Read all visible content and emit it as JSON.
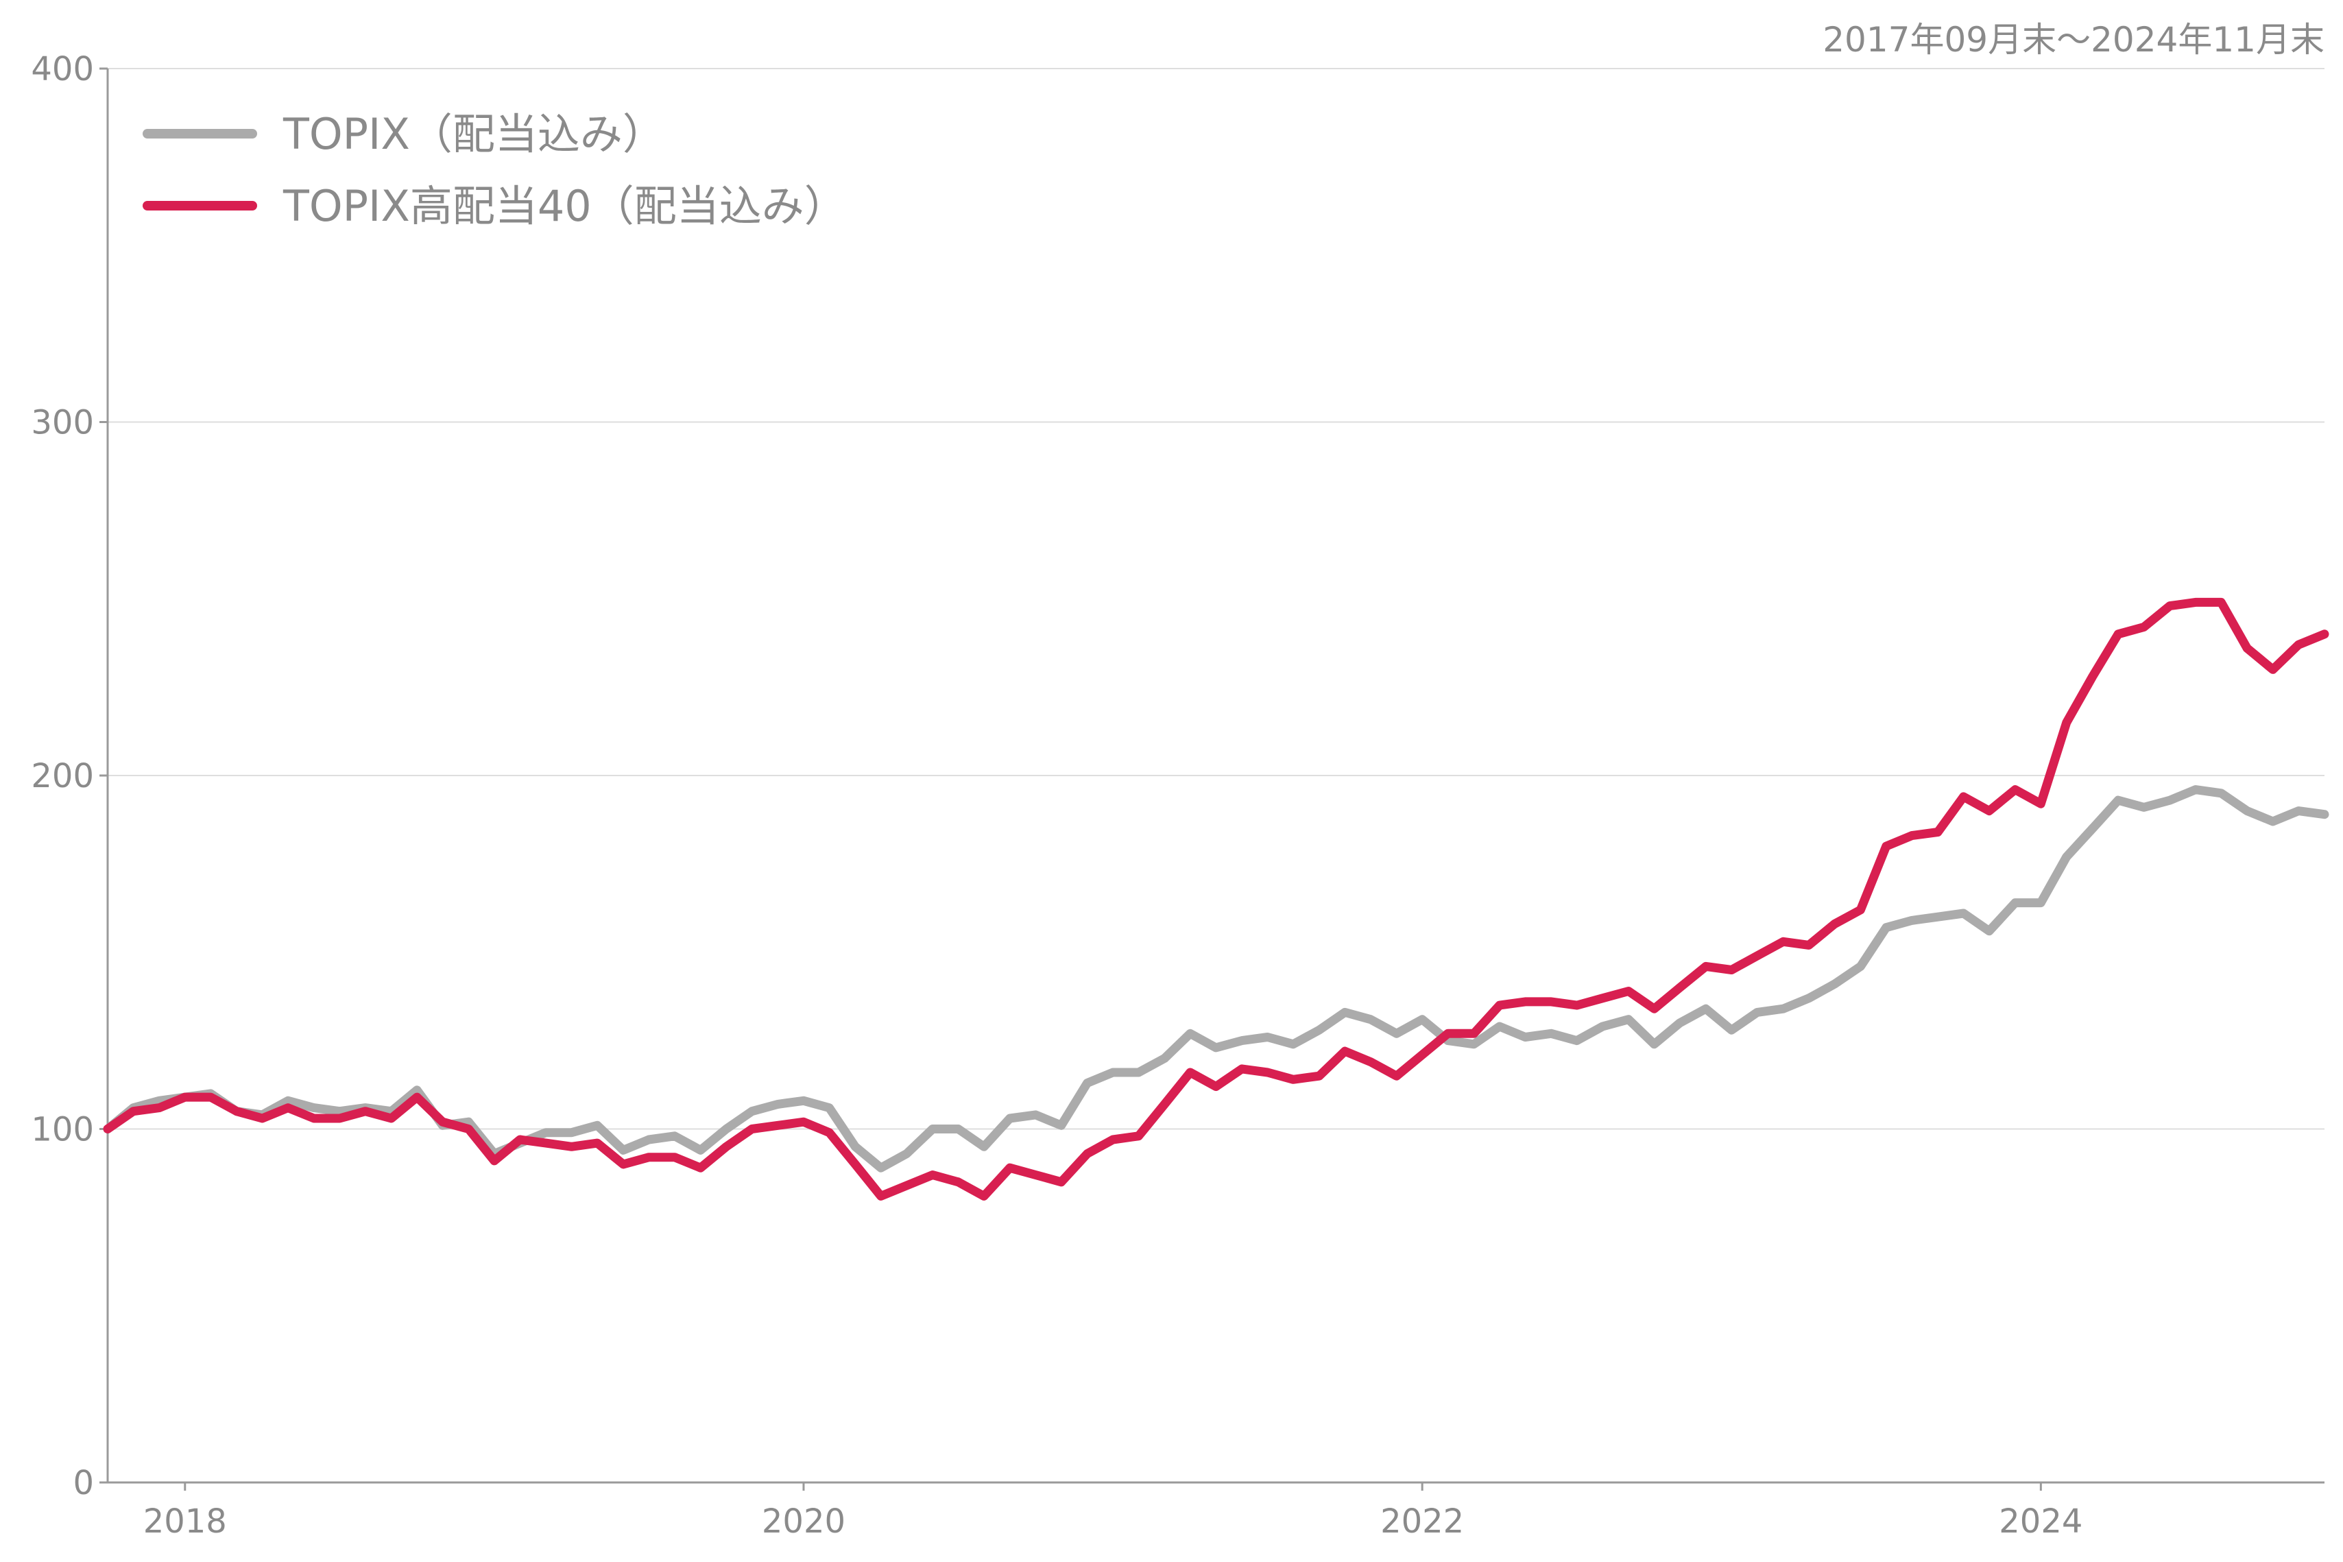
{
  "period_label": "2017年09月末～2024年11月末",
  "chart_data": {
    "type": "line",
    "ylim": [
      0,
      400
    ],
    "yticks": [
      0,
      100,
      200,
      300,
      400
    ],
    "xlim": [
      2017.75,
      2024.917
    ],
    "xticks": [
      2018,
      2020,
      2022,
      2024
    ],
    "xtick_labels": [
      "2018",
      "2020",
      "2022",
      "2024"
    ],
    "grid": true,
    "legend_position": "top-left",
    "series": [
      {
        "name": "TOPIX（配当込み）",
        "color": "#ababab",
        "x": [
          2017.75,
          2017.833,
          2017.917,
          2018.0,
          2018.083,
          2018.167,
          2018.25,
          2018.333,
          2018.417,
          2018.5,
          2018.583,
          2018.667,
          2018.75,
          2018.833,
          2018.917,
          2019.0,
          2019.083,
          2019.167,
          2019.25,
          2019.333,
          2019.417,
          2019.5,
          2019.583,
          2019.667,
          2019.75,
          2019.833,
          2019.917,
          2020.0,
          2020.083,
          2020.167,
          2020.25,
          2020.333,
          2020.417,
          2020.5,
          2020.583,
          2020.667,
          2020.75,
          2020.833,
          2020.917,
          2021.0,
          2021.083,
          2021.167,
          2021.25,
          2021.333,
          2021.417,
          2021.5,
          2021.583,
          2021.667,
          2021.75,
          2021.833,
          2021.917,
          2022.0,
          2022.083,
          2022.167,
          2022.25,
          2022.333,
          2022.417,
          2022.5,
          2022.583,
          2022.667,
          2022.75,
          2022.833,
          2022.917,
          2023.0,
          2023.083,
          2023.167,
          2023.25,
          2023.333,
          2023.417,
          2023.5,
          2023.583,
          2023.667,
          2023.75,
          2023.833,
          2023.917,
          2024.0,
          2024.083,
          2024.167,
          2024.25,
          2024.333,
          2024.417,
          2024.5,
          2024.583,
          2024.667,
          2024.75,
          2024.833,
          2024.917
        ],
        "values": [
          100,
          106,
          108,
          109,
          110,
          105,
          104,
          108,
          106,
          105,
          106,
          105,
          111,
          101,
          102,
          93,
          96,
          99,
          99,
          101,
          94,
          97,
          98,
          94,
          100,
          105,
          107,
          108,
          106,
          95,
          89,
          93,
          100,
          100,
          95,
          103,
          104,
          101,
          113,
          116,
          116,
          120,
          127,
          123,
          125,
          126,
          124,
          128,
          133,
          131,
          127,
          131,
          125,
          124,
          129,
          126,
          127,
          125,
          129,
          131,
          124,
          130,
          134,
          128,
          133,
          134,
          137,
          141,
          146,
          157,
          159,
          160,
          161,
          156,
          164,
          164,
          177,
          185,
          193,
          191,
          193,
          196,
          195,
          190,
          187,
          190,
          189
        ]
      },
      {
        "name": "TOPIX高配当40（配当込み）",
        "color": "#d81f50",
        "x": [
          2017.75,
          2017.833,
          2017.917,
          2018.0,
          2018.083,
          2018.167,
          2018.25,
          2018.333,
          2018.417,
          2018.5,
          2018.583,
          2018.667,
          2018.75,
          2018.833,
          2018.917,
          2019.0,
          2019.083,
          2019.167,
          2019.25,
          2019.333,
          2019.417,
          2019.5,
          2019.583,
          2019.667,
          2019.75,
          2019.833,
          2019.917,
          2020.0,
          2020.083,
          2020.167,
          2020.25,
          2020.333,
          2020.417,
          2020.5,
          2020.583,
          2020.667,
          2020.75,
          2020.833,
          2020.917,
          2021.0,
          2021.083,
          2021.167,
          2021.25,
          2021.333,
          2021.417,
          2021.5,
          2021.583,
          2021.667,
          2021.75,
          2021.833,
          2021.917,
          2022.0,
          2022.083,
          2022.167,
          2022.25,
          2022.333,
          2022.417,
          2022.5,
          2022.583,
          2022.667,
          2022.75,
          2022.833,
          2022.917,
          2023.0,
          2023.083,
          2023.167,
          2023.25,
          2023.333,
          2023.417,
          2023.5,
          2023.583,
          2023.667,
          2023.75,
          2023.833,
          2023.917,
          2024.0,
          2024.083,
          2024.167,
          2024.25,
          2024.333,
          2024.417,
          2024.5,
          2024.583,
          2024.667,
          2024.75,
          2024.833,
          2024.917
        ],
        "values": [
          100,
          105,
          106,
          109,
          109,
          105,
          103,
          106,
          103,
          103,
          105,
          103,
          109,
          102,
          100,
          91,
          97,
          96,
          95,
          96,
          90,
          92,
          92,
          89,
          95,
          100,
          101,
          102,
          99,
          90,
          81,
          84,
          87,
          85,
          81,
          89,
          87,
          85,
          93,
          97,
          98,
          107,
          116,
          112,
          117,
          116,
          114,
          115,
          122,
          119,
          115,
          121,
          127,
          127,
          135,
          136,
          136,
          135,
          137,
          139,
          134,
          140,
          146,
          145,
          149,
          153,
          152,
          158,
          162,
          180,
          183,
          184,
          194,
          190,
          196,
          192,
          215,
          228,
          240,
          242,
          248,
          249,
          249,
          236,
          230,
          237,
          240
        ]
      }
    ]
  }
}
